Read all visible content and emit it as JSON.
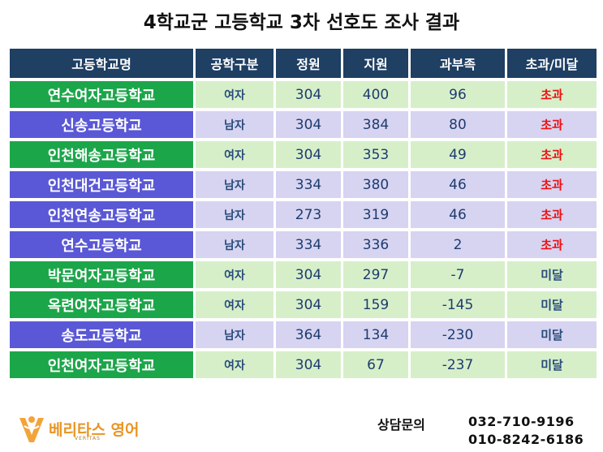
{
  "title": "4학교군 고등학교 3차 선호도 조사 결과",
  "table": {
    "headers": [
      "고등학교명",
      "공학구분",
      "정원",
      "지원",
      "과부족",
      "초과/미달"
    ],
    "rows": [
      {
        "name": "연수여자고등학교",
        "gender": "여자",
        "capacity": "304",
        "applicants": "400",
        "difference": "96",
        "status": "초과",
        "status_type": "over"
      },
      {
        "name": "신송고등학교",
        "gender": "남자",
        "capacity": "304",
        "applicants": "384",
        "difference": "80",
        "status": "초과",
        "status_type": "over"
      },
      {
        "name": "인천해송고등학교",
        "gender": "여자",
        "capacity": "304",
        "applicants": "353",
        "difference": "49",
        "status": "초과",
        "status_type": "over"
      },
      {
        "name": "인천대건고등학교",
        "gender": "남자",
        "capacity": "334",
        "applicants": "380",
        "difference": "46",
        "status": "초과",
        "status_type": "over"
      },
      {
        "name": "인천연송고등학교",
        "gender": "남자",
        "capacity": "273",
        "applicants": "319",
        "difference": "46",
        "status": "초과",
        "status_type": "over"
      },
      {
        "name": "연수고등학교",
        "gender": "남자",
        "capacity": "334",
        "applicants": "336",
        "difference": "2",
        "status": "초과",
        "status_type": "over"
      },
      {
        "name": "박문여자고등학교",
        "gender": "여자",
        "capacity": "304",
        "applicants": "297",
        "difference": "-7",
        "status": "미달",
        "status_type": "under"
      },
      {
        "name": "옥련여자고등학교",
        "gender": "여자",
        "capacity": "304",
        "applicants": "159",
        "difference": "-145",
        "status": "미달",
        "status_type": "under"
      },
      {
        "name": "송도고등학교",
        "gender": "남자",
        "capacity": "364",
        "applicants": "134",
        "difference": "-230",
        "status": "미달",
        "status_type": "under"
      },
      {
        "name": "인천여자고등학교",
        "gender": "여자",
        "capacity": "304",
        "applicants": "67",
        "difference": "-237",
        "status": "미달",
        "status_type": "under"
      }
    ]
  },
  "logo": {
    "text": "베리타스 영어",
    "sub": "VERITAS",
    "icon": "v-logo-icon"
  },
  "contact": {
    "label": "상담문의",
    "phone1": "032-710-9196",
    "phone2": "010-8242-6186"
  },
  "colors": {
    "header_bg": "#1f3f63",
    "female_name_bg": "#1ca64a",
    "male_name_bg": "#5a58d6",
    "female_cell_bg": "#d6efc9",
    "male_cell_bg": "#d6d4f1",
    "over_text": "#ee1111",
    "under_text": "#284a7a",
    "logo": "#e99524"
  }
}
